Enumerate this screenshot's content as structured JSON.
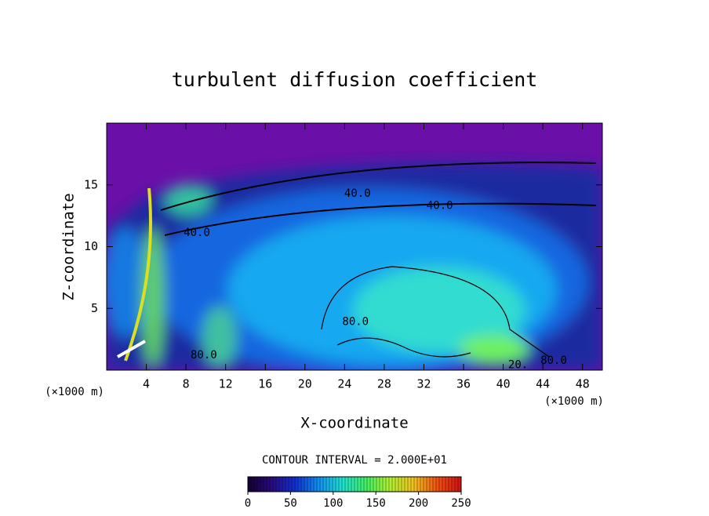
{
  "chart_data": {
    "type": "contour",
    "title": "turbulent diffusion coefficient",
    "xlabel": "X-coordinate",
    "ylabel": "Z-coordinate",
    "xunit": "(×1000 m)",
    "xunit_right": "(×1000 m)",
    "xlim": [
      0,
      50
    ],
    "xticks": [
      4,
      8,
      12,
      16,
      20,
      24,
      28,
      32,
      36,
      40,
      44,
      48
    ],
    "ylim": [
      0,
      20
    ],
    "yticks": [
      5,
      10,
      15
    ],
    "contour_interval": "CONTOUR INTERVAL = 2.000E+01",
    "clim": [
      0,
      250
    ],
    "cticks": [
      0,
      50,
      100,
      150,
      200,
      250
    ],
    "colormap": [
      "#140030",
      "#2a0a80",
      "#1030d0",
      "#1090f0",
      "#20e0d0",
      "#40f060",
      "#b0f030",
      "#f0c020",
      "#f05010",
      "#d01010"
    ],
    "annotations": [
      {
        "text": "40.0",
        "x": 9.1,
        "y": 11.1
      },
      {
        "text": "40.0",
        "x": 25.3,
        "y": 14.3
      },
      {
        "text": "40.0",
        "x": 33.6,
        "y": 13.3
      },
      {
        "text": "80.0",
        "x": 25.1,
        "y": 3.9
      },
      {
        "text": "80.0",
        "x": 9.8,
        "y": 1.2
      },
      {
        "text": "20.",
        "x": 41.5,
        "y": 0.4
      },
      {
        "text": "80.0",
        "x": 45.1,
        "y": 0.75
      }
    ]
  }
}
